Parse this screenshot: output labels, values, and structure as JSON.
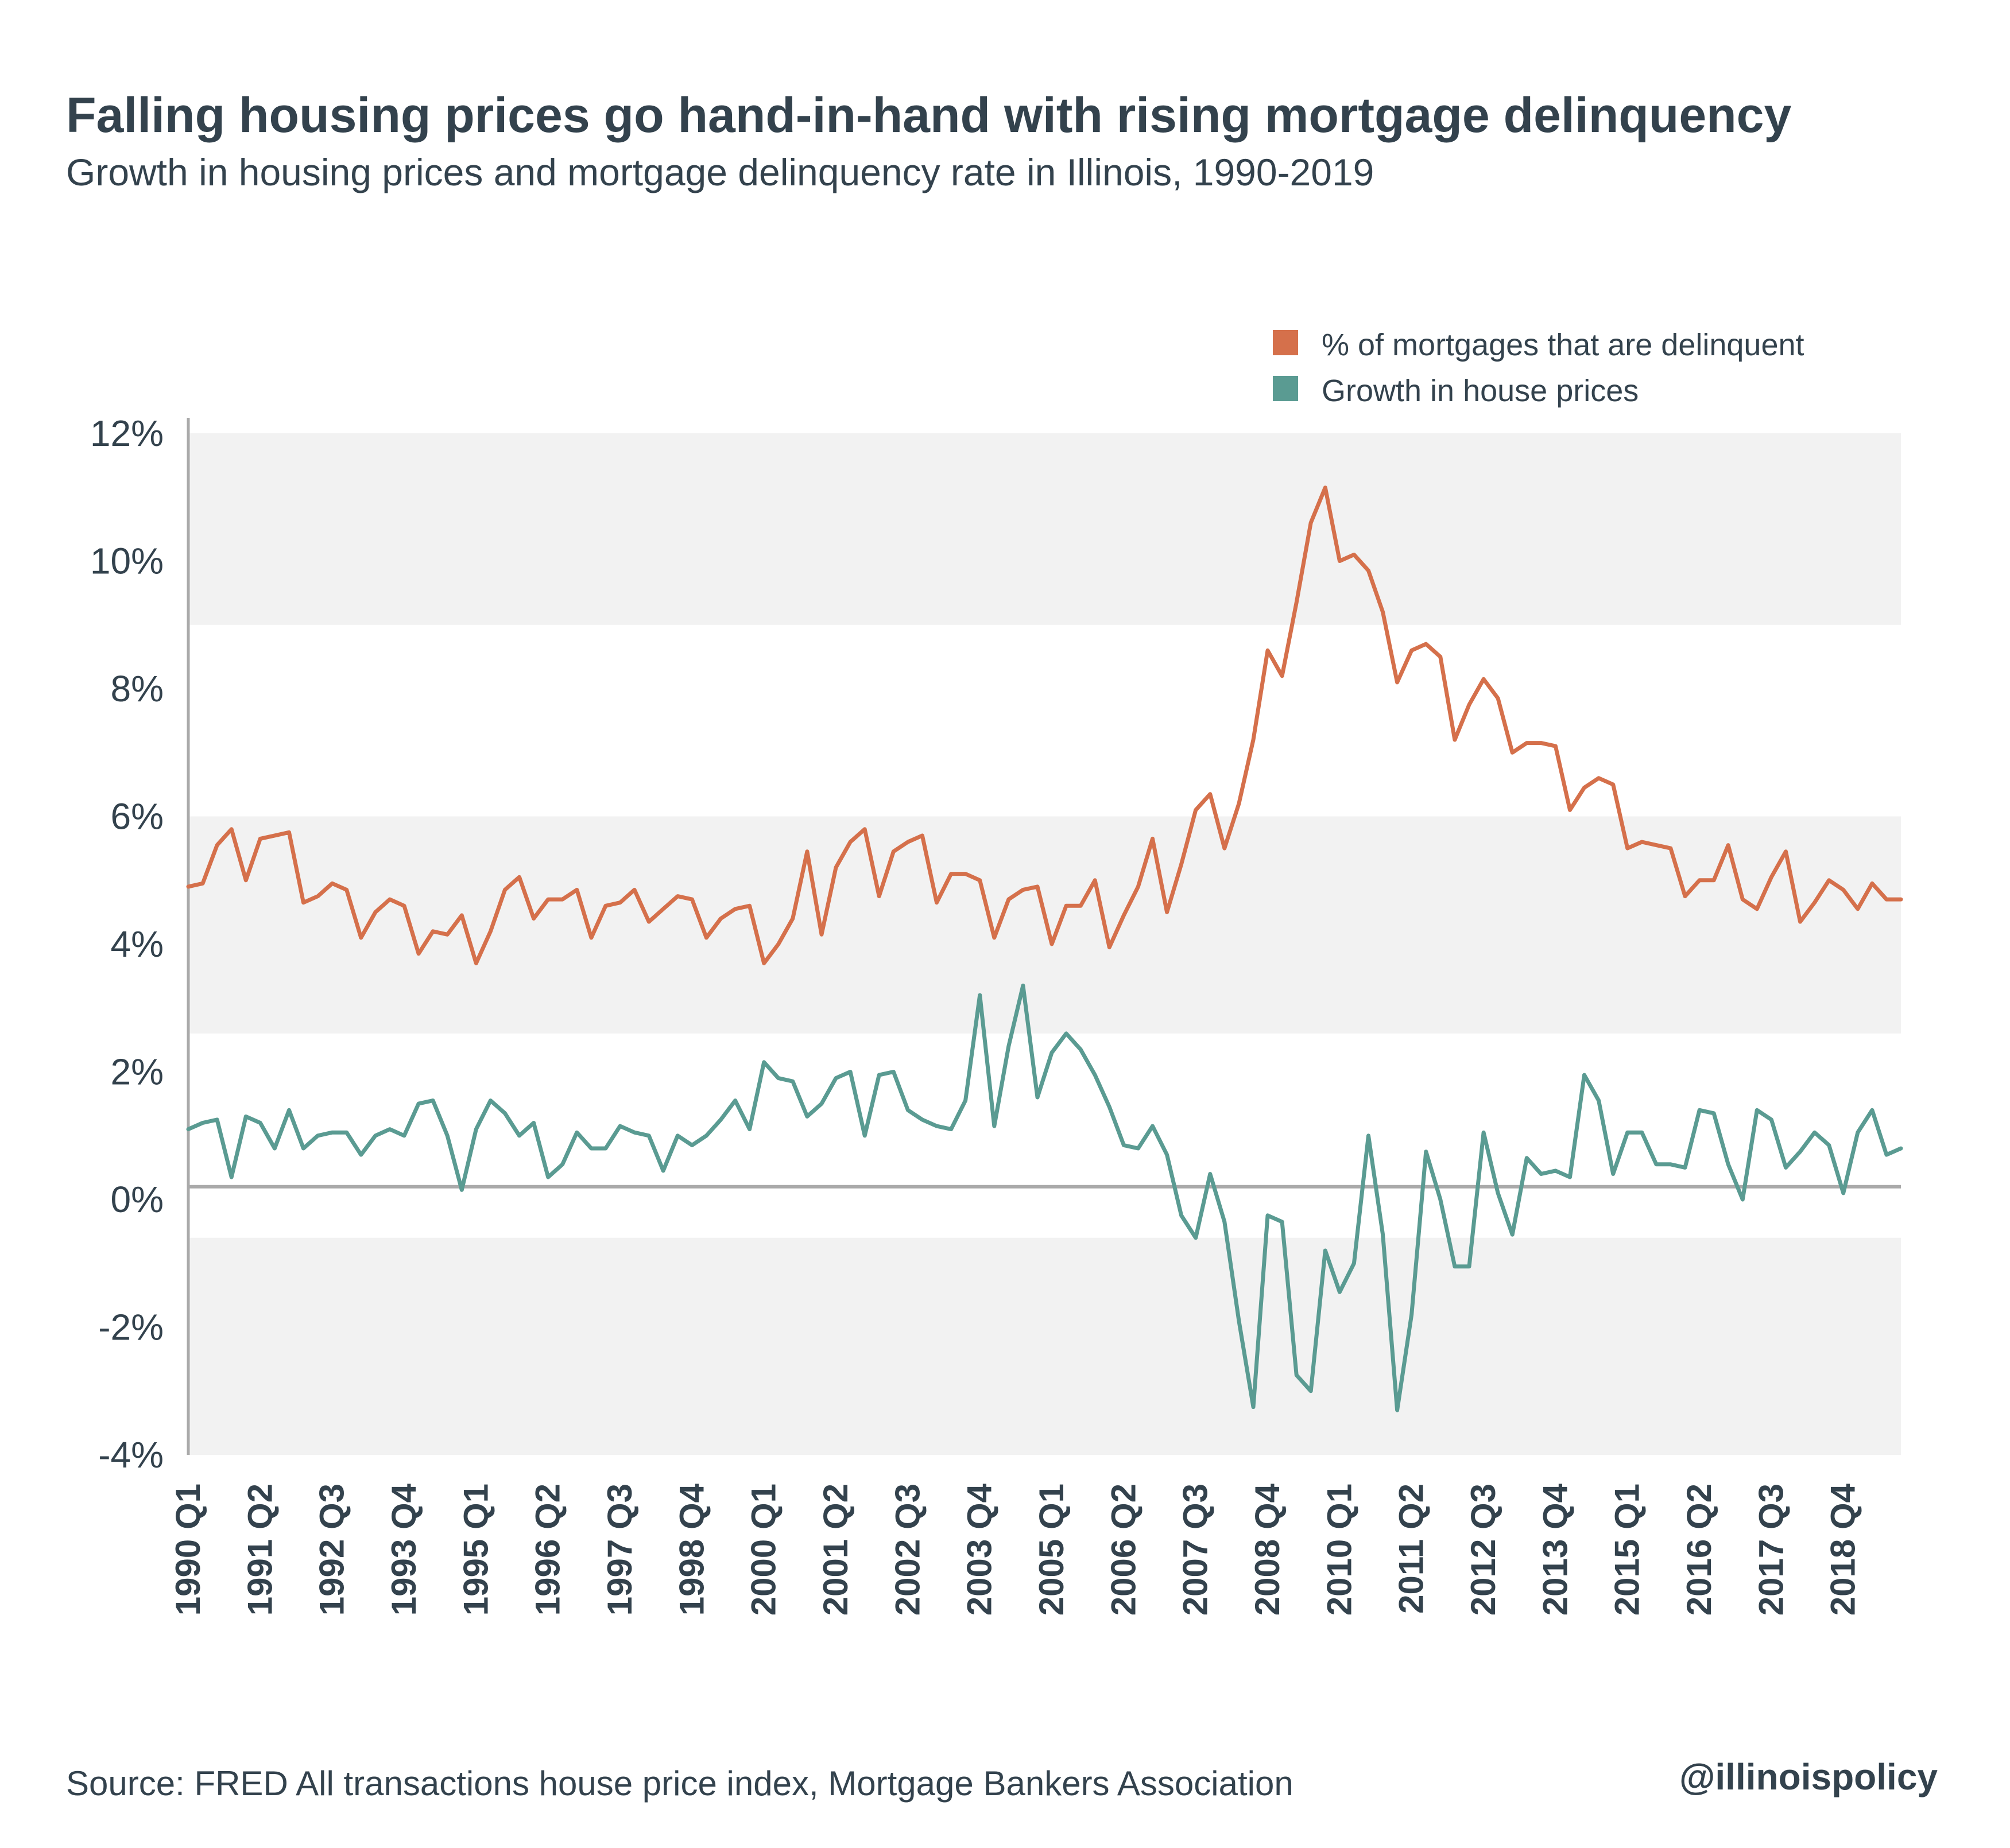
{
  "header": {
    "title": "Falling housing prices go hand-in-hand with rising mortgage delinquency",
    "subtitle": "Growth in housing prices and mortgage delinquency rate in Illinois, 1990-2019"
  },
  "footer": {
    "source": "Source:  FRED All transactions house price index, Mortgage Bankers Association",
    "handle": "@illinoispolicy"
  },
  "colors": {
    "delinquent": "#d5704b",
    "house_prices": "#5a9b92",
    "band": "#f2f2f2",
    "zero_line": "#aaaaaa",
    "text": "#33424d"
  },
  "chart_data": {
    "type": "line",
    "title": "Falling housing prices go hand-in-hand with rising mortgage delinquency",
    "subtitle": "Growth in housing prices and mortgage delinquency rate in Illinois, 1990-2019",
    "xlabel": "",
    "ylabel": "",
    "ylim": [
      -4,
      12
    ],
    "yticks": [
      "12%",
      "10%",
      "8%",
      "6%",
      "4%",
      "2%",
      "0%",
      "-2%",
      "-4%"
    ],
    "ytick_values": [
      12,
      10,
      8,
      6,
      4,
      2,
      0,
      -2,
      -4
    ],
    "x_start": "1990 Q1",
    "x_end": "2019 Q3",
    "xticks": [
      "1990 Q1",
      "1991 Q2",
      "1992 Q3",
      "1993 Q4",
      "1995 Q1",
      "1996 Q2",
      "1997 Q3",
      "1998 Q4",
      "2000 Q1",
      "2001 Q2",
      "2002 Q3",
      "2003 Q4",
      "2005 Q1",
      "2006 Q2",
      "2007 Q3",
      "2008 Q4",
      "2010 Q1",
      "2011 Q2",
      "2012 Q3",
      "2013 Q4",
      "2015 Q1",
      "2016 Q2",
      "2017 Q3",
      "2018 Q4"
    ],
    "legend": {
      "position": "top-right"
    },
    "series": [
      {
        "name": "% of mortgages that are delinquent",
        "color": "#d5704b",
        "values": [
          4.9,
          4.95,
          5.55,
          5.8,
          5.0,
          5.65,
          5.7,
          5.75,
          4.65,
          4.75,
          4.95,
          4.85,
          4.1,
          4.5,
          4.7,
          4.6,
          3.85,
          4.2,
          4.15,
          4.45,
          3.7,
          4.2,
          4.85,
          5.05,
          4.4,
          4.7,
          4.7,
          4.85,
          4.1,
          4.6,
          4.65,
          4.85,
          4.35,
          4.55,
          4.75,
          4.7,
          4.1,
          4.4,
          4.55,
          4.6,
          3.7,
          4.0,
          4.4,
          5.45,
          4.15,
          5.2,
          5.6,
          5.8,
          4.75,
          5.45,
          5.6,
          5.7,
          4.65,
          5.1,
          5.1,
          5.0,
          4.1,
          4.7,
          4.85,
          4.9,
          4.0,
          4.6,
          4.6,
          5.0,
          3.95,
          4.45,
          4.9,
          5.65,
          4.5,
          5.25,
          6.1,
          6.35,
          5.5,
          6.2,
          7.2,
          8.6,
          8.2,
          9.35,
          10.6,
          11.15,
          10.0,
          10.1,
          9.85,
          9.2,
          8.1,
          8.6,
          8.7,
          8.5,
          7.2,
          7.75,
          8.15,
          7.85,
          7.0,
          7.15,
          7.15,
          7.1,
          6.1,
          6.45,
          6.6,
          6.5,
          5.5,
          5.6,
          5.55,
          5.5,
          4.75,
          5.0,
          5.0,
          5.55,
          4.7,
          4.55,
          5.05,
          5.45,
          4.35,
          4.65,
          5.0,
          4.85,
          4.55,
          4.95,
          4.7,
          4.7
        ]
      },
      {
        "name": "Growth in house prices",
        "color": "#5a9b92",
        "values": [
          1.1,
          1.2,
          1.25,
          0.35,
          1.3,
          1.2,
          0.8,
          1.4,
          0.8,
          1.0,
          1.05,
          1.05,
          0.7,
          1.0,
          1.1,
          1.0,
          1.5,
          1.55,
          1.0,
          0.15,
          1.1,
          1.55,
          1.35,
          1.0,
          1.2,
          0.35,
          0.55,
          1.05,
          0.8,
          0.8,
          1.15,
          1.05,
          1.0,
          0.45,
          1.0,
          0.85,
          1.0,
          1.25,
          1.55,
          1.1,
          2.15,
          1.9,
          1.85,
          1.3,
          1.5,
          1.9,
          2.0,
          1.0,
          1.95,
          2.0,
          1.4,
          1.25,
          1.15,
          1.1,
          1.55,
          3.2,
          1.15,
          2.4,
          3.35,
          1.6,
          2.3,
          2.6,
          2.35,
          1.95,
          1.45,
          0.85,
          0.8,
          1.15,
          0.7,
          -0.25,
          -0.6,
          0.4,
          -0.35,
          -1.9,
          -3.25,
          -0.25,
          -0.35,
          -2.75,
          -3.0,
          -0.8,
          -1.45,
          -1.0,
          1.0,
          -0.55,
          -3.3,
          -1.8,
          0.75,
          0.0,
          -1.05,
          -1.05,
          1.05,
          0.1,
          -0.55,
          0.65,
          0.4,
          0.45,
          0.35,
          1.95,
          1.55,
          0.4,
          1.05,
          1.05,
          0.55,
          0.55,
          0.5,
          1.4,
          1.35,
          0.55,
          0.0,
          1.4,
          1.25,
          0.5,
          0.75,
          1.05,
          0.85,
          0.1,
          1.05,
          1.4,
          0.7,
          0.8
        ]
      }
    ]
  }
}
